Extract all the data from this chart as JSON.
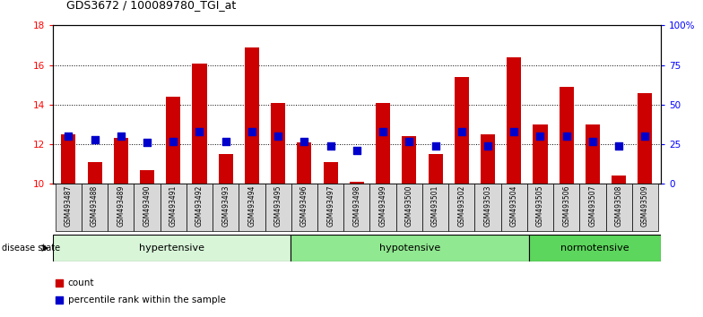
{
  "title": "GDS3672 / 100089780_TGI_at",
  "samples": [
    "GSM493487",
    "GSM493488",
    "GSM493489",
    "GSM493490",
    "GSM493491",
    "GSM493492",
    "GSM493493",
    "GSM493494",
    "GSM493495",
    "GSM493496",
    "GSM493497",
    "GSM493498",
    "GSM493499",
    "GSM493500",
    "GSM493501",
    "GSM493502",
    "GSM493503",
    "GSM493504",
    "GSM493505",
    "GSM493506",
    "GSM493507",
    "GSM493508",
    "GSM493509"
  ],
  "counts": [
    12.5,
    11.1,
    12.3,
    10.7,
    14.4,
    16.05,
    11.5,
    16.9,
    14.1,
    12.1,
    11.1,
    10.1,
    14.1,
    12.4,
    11.5,
    15.4,
    12.5,
    16.4,
    13.0,
    14.9,
    13.0,
    10.4,
    14.6
  ],
  "percentiles": [
    30,
    28,
    30,
    26,
    27,
    33,
    27,
    33,
    30,
    27,
    24,
    21,
    33,
    27,
    24,
    33,
    24,
    33,
    30,
    30,
    27,
    24,
    30
  ],
  "groups": [
    {
      "label": "hypertensive",
      "start": 0,
      "end": 9,
      "color": "#d8f5d8"
    },
    {
      "label": "hypotensive",
      "start": 9,
      "end": 18,
      "color": "#90e890"
    },
    {
      "label": "normotensive",
      "start": 18,
      "end": 23,
      "color": "#5cd65c"
    }
  ],
  "bar_color": "#cc0000",
  "dot_color": "#0000cc",
  "ylim_left": [
    10,
    18
  ],
  "ylim_right": [
    0,
    100
  ],
  "yticks_left": [
    10,
    12,
    14,
    16,
    18
  ],
  "yticks_right": [
    0,
    25,
    50,
    75,
    100
  ],
  "ytick_labels_right": [
    "0",
    "25",
    "50",
    "75",
    "100%"
  ],
  "grid_lines": [
    12,
    14,
    16
  ],
  "bar_width": 0.55,
  "dot_size": 35,
  "cell_bg_color": "#d8d8d8",
  "plot_bg_color": "#ffffff"
}
